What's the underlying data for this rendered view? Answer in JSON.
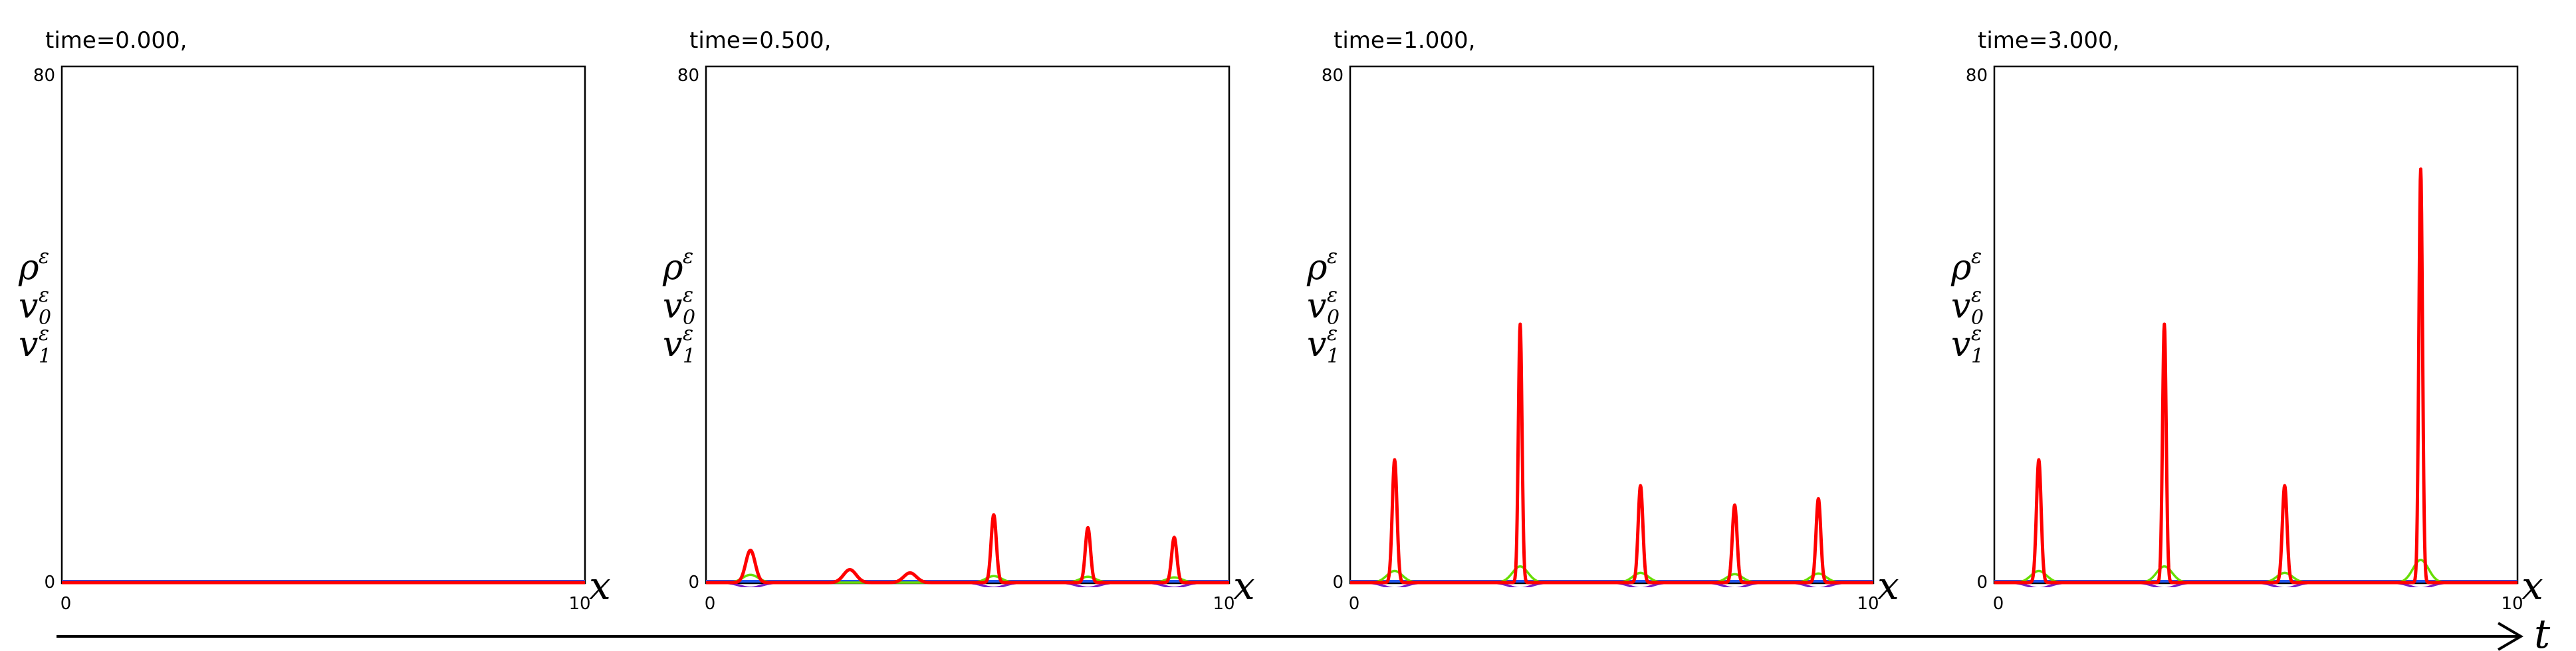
{
  "colors": {
    "rho": "#ff0000",
    "v0": "#66dd00",
    "v1": "#7a20c8",
    "baseline": "#2255ee",
    "frame": "#000000",
    "background": "#ffffff"
  },
  "axis_symbols": {
    "x": "x",
    "t": "t",
    "rho": "ρ",
    "v0": "v",
    "v0_sub": "0",
    "v1": "v",
    "v1_sub": "1",
    "eps": "ε"
  },
  "chart_data": [
    {
      "type": "line",
      "title": "time=0.000,",
      "xlim": [
        0,
        10
      ],
      "ylim": [
        0,
        80
      ],
      "xticks": [
        "0",
        "10"
      ],
      "yticks": [
        "0",
        "80"
      ],
      "series": [
        {
          "name": "ρ^ε",
          "color": "#ff0000",
          "peaks": []
        },
        {
          "name": "v_0^ε",
          "color": "#66dd00",
          "peaks": []
        },
        {
          "name": "v_1^ε",
          "color": "#7a20c8",
          "peaks": []
        }
      ]
    },
    {
      "type": "line",
      "title": "time=0.500,",
      "xlim": [
        0,
        10
      ],
      "ylim": [
        0,
        80
      ],
      "xticks": [
        "0",
        "10"
      ],
      "yticks": [
        "0",
        "80"
      ],
      "series": [
        {
          "name": "ρ^ε",
          "color": "#ff0000",
          "peaks": [
            {
              "x": 0.85,
              "y": 5,
              "w": 0.09
            },
            {
              "x": 2.75,
              "y": 2,
              "w": 0.12
            },
            {
              "x": 3.9,
              "y": 1.5,
              "w": 0.12
            },
            {
              "x": 5.5,
              "y": 10.5,
              "w": 0.05
            },
            {
              "x": 7.3,
              "y": 8.5,
              "w": 0.05
            },
            {
              "x": 8.95,
              "y": 7,
              "w": 0.05
            }
          ]
        },
        {
          "name": "v_0^ε",
          "color": "#66dd00",
          "peaks": [
            {
              "x": 0.85,
              "y": 1.2,
              "w": 0.15
            },
            {
              "x": 5.5,
              "y": 1.0,
              "w": 0.15
            },
            {
              "x": 7.3,
              "y": 0.9,
              "w": 0.15
            },
            {
              "x": 8.95,
              "y": 0.8,
              "w": 0.15
            }
          ]
        },
        {
          "name": "v_1^ε",
          "color": "#7a20c8",
          "peaks": [
            {
              "x": 0.85,
              "y": -0.8,
              "w": 0.2
            },
            {
              "x": 5.5,
              "y": -0.8,
              "w": 0.2
            },
            {
              "x": 7.3,
              "y": -0.8,
              "w": 0.2
            },
            {
              "x": 8.95,
              "y": -0.8,
              "w": 0.2
            }
          ]
        }
      ]
    },
    {
      "type": "line",
      "title": "time=1.000,",
      "xlim": [
        0,
        10
      ],
      "ylim": [
        0,
        80
      ],
      "xticks": [
        "0",
        "10"
      ],
      "yticks": [
        "0",
        "80"
      ],
      "series": [
        {
          "name": "ρ^ε",
          "color": "#ff0000",
          "peaks": [
            {
              "x": 0.85,
              "y": 19,
              "w": 0.045
            },
            {
              "x": 3.25,
              "y": 40,
              "w": 0.035
            },
            {
              "x": 5.55,
              "y": 15,
              "w": 0.045
            },
            {
              "x": 7.35,
              "y": 12,
              "w": 0.045
            },
            {
              "x": 8.95,
              "y": 13,
              "w": 0.045
            }
          ]
        },
        {
          "name": "v_0^ε",
          "color": "#66dd00",
          "peaks": [
            {
              "x": 0.85,
              "y": 1.8,
              "w": 0.15
            },
            {
              "x": 3.25,
              "y": 2.5,
              "w": 0.15
            },
            {
              "x": 5.55,
              "y": 1.5,
              "w": 0.15
            },
            {
              "x": 7.35,
              "y": 1.3,
              "w": 0.15
            },
            {
              "x": 8.95,
              "y": 1.4,
              "w": 0.15
            }
          ]
        },
        {
          "name": "v_1^ε",
          "color": "#7a20c8",
          "peaks": [
            {
              "x": 0.85,
              "y": -0.9,
              "w": 0.2
            },
            {
              "x": 3.25,
              "y": -0.9,
              "w": 0.2
            },
            {
              "x": 5.55,
              "y": -0.9,
              "w": 0.2
            },
            {
              "x": 7.35,
              "y": -0.9,
              "w": 0.2
            },
            {
              "x": 8.95,
              "y": -0.9,
              "w": 0.2
            }
          ]
        }
      ]
    },
    {
      "type": "line",
      "title": "time=3.000,",
      "xlim": [
        0,
        10
      ],
      "ylim": [
        0,
        80
      ],
      "xticks": [
        "0",
        "10"
      ],
      "yticks": [
        "0",
        "80"
      ],
      "series": [
        {
          "name": "ρ^ε",
          "color": "#ff0000",
          "peaks": [
            {
              "x": 0.85,
              "y": 19,
              "w": 0.045
            },
            {
              "x": 3.25,
              "y": 40,
              "w": 0.035
            },
            {
              "x": 5.55,
              "y": 15,
              "w": 0.045
            },
            {
              "x": 8.15,
              "y": 64,
              "w": 0.035
            }
          ]
        },
        {
          "name": "v_0^ε",
          "color": "#66dd00",
          "peaks": [
            {
              "x": 0.85,
              "y": 1.8,
              "w": 0.15
            },
            {
              "x": 3.25,
              "y": 2.5,
              "w": 0.15
            },
            {
              "x": 5.55,
              "y": 1.5,
              "w": 0.15
            },
            {
              "x": 8.15,
              "y": 3.5,
              "w": 0.15
            }
          ]
        },
        {
          "name": "v_1^ε",
          "color": "#7a20c8",
          "peaks": [
            {
              "x": 0.85,
              "y": -0.9,
              "w": 0.2
            },
            {
              "x": 3.25,
              "y": -0.9,
              "w": 0.2
            },
            {
              "x": 5.55,
              "y": -0.9,
              "w": 0.2
            },
            {
              "x": 8.15,
              "y": -0.9,
              "w": 0.2
            }
          ]
        }
      ]
    }
  ]
}
